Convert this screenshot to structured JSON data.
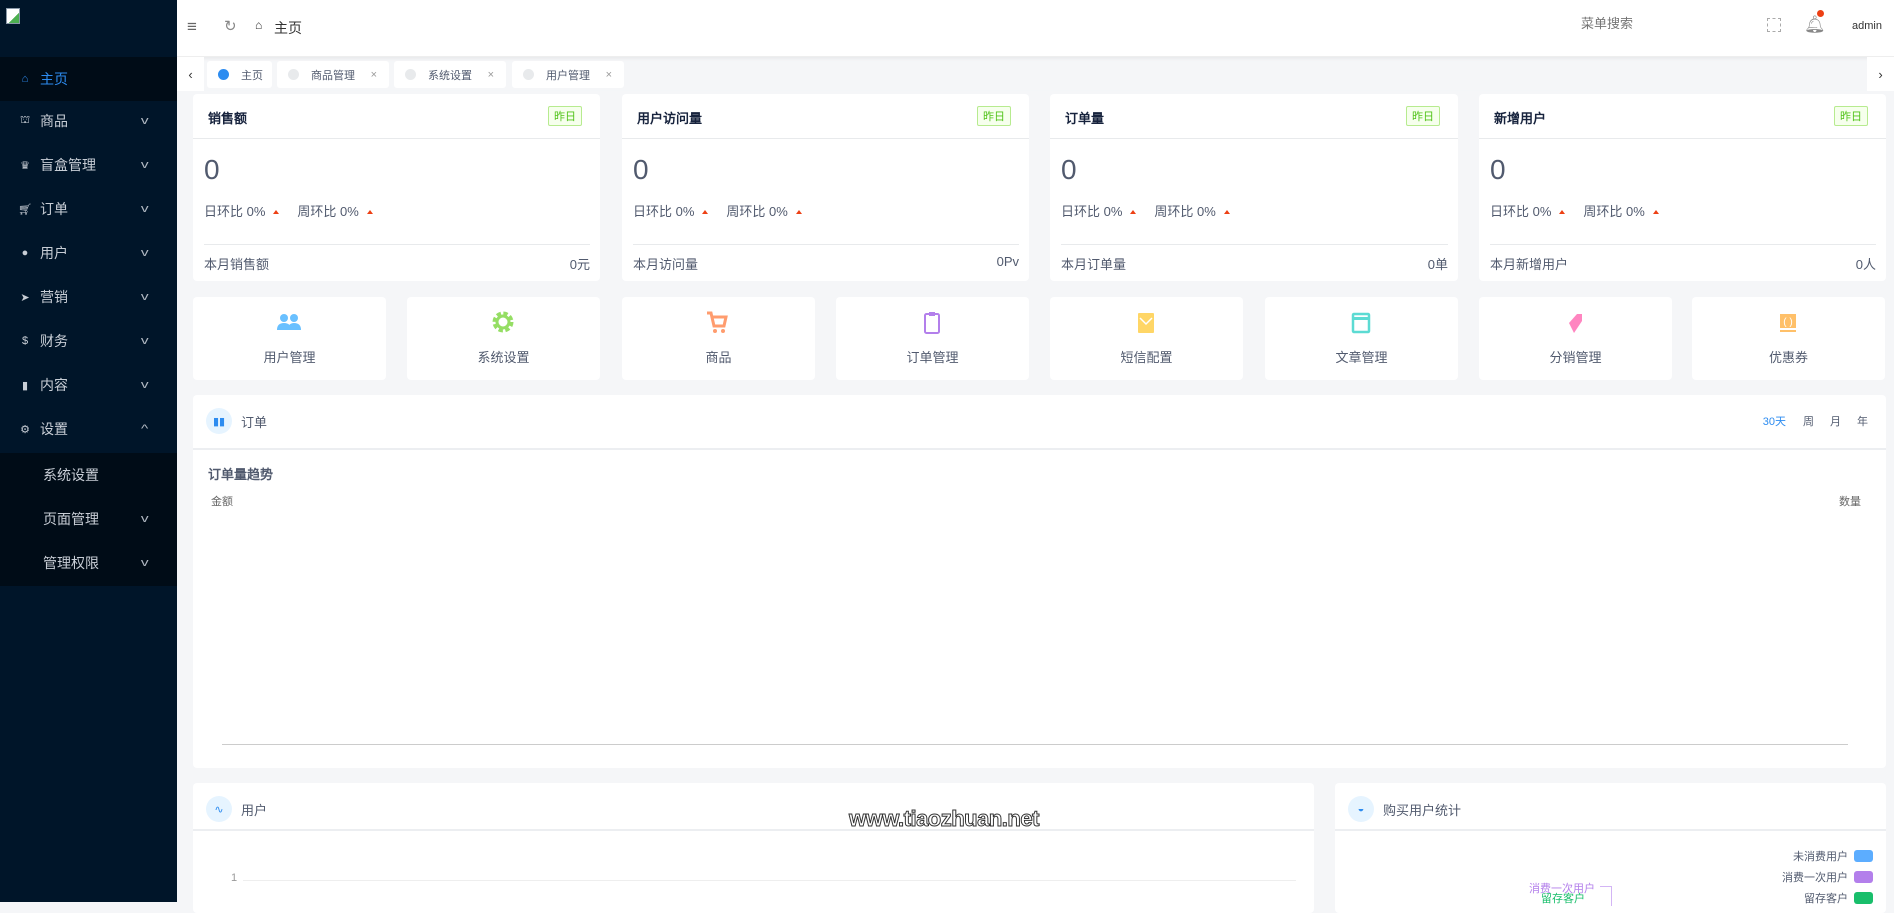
{
  "sidebar": {
    "items": [
      {
        "label": "主页",
        "icon": "home-icon"
      },
      {
        "label": "商品",
        "icon": "basket-icon"
      },
      {
        "label": "盲盒管理",
        "icon": "trophy-icon"
      },
      {
        "label": "订单",
        "icon": "cart-icon"
      },
      {
        "label": "用户",
        "icon": "user-icon"
      },
      {
        "label": "营销",
        "icon": "paper-plane-icon"
      },
      {
        "label": "财务",
        "icon": "dollar-icon"
      },
      {
        "label": "内容",
        "icon": "book-icon"
      },
      {
        "label": "设置",
        "icon": "gear-icon"
      }
    ],
    "submenu": [
      {
        "label": "系统设置"
      },
      {
        "label": "页面管理"
      },
      {
        "label": "管理权限"
      }
    ]
  },
  "header": {
    "breadcrumb": "主页",
    "search_placeholder": "菜单搜索",
    "username": "admin"
  },
  "tabs": [
    {
      "label": "主页",
      "active": true
    },
    {
      "label": "商品管理"
    },
    {
      "label": "系统设置"
    },
    {
      "label": "用户管理"
    }
  ],
  "stats": [
    {
      "title": "销售额",
      "badge": "昨日",
      "value": "0",
      "day": "日环比 0%",
      "week": "周环比 0%",
      "foot_label": "本月销售额",
      "foot_value": "0元"
    },
    {
      "title": "用户访问量",
      "badge": "昨日",
      "value": "0",
      "day": "日环比 0%",
      "week": "周环比 0%",
      "foot_label": "本月访问量",
      "foot_value": "0Pv"
    },
    {
      "title": "订单量",
      "badge": "昨日",
      "value": "0",
      "day": "日环比 0%",
      "week": "周环比 0%",
      "foot_label": "本月订单量",
      "foot_value": "0单"
    },
    {
      "title": "新增用户",
      "badge": "昨日",
      "value": "0",
      "day": "日环比 0%",
      "week": "周环比 0%",
      "foot_label": "本月新增用户",
      "foot_value": "0人"
    }
  ],
  "quick": [
    {
      "label": "用户管理",
      "icon": "users-icon",
      "color": "#69c0ff"
    },
    {
      "label": "系统设置",
      "icon": "gear-icon",
      "color": "#95de64"
    },
    {
      "label": "商品",
      "icon": "cart-icon",
      "color": "#ff9c6e"
    },
    {
      "label": "订单管理",
      "icon": "clipboard-icon",
      "color": "#b37feb"
    },
    {
      "label": "短信配置",
      "icon": "mail-icon",
      "color": "#ffd666"
    },
    {
      "label": "文章管理",
      "icon": "card-icon",
      "color": "#5cdbd3"
    },
    {
      "label": "分销管理",
      "icon": "tag-icon",
      "color": "#ff85c0"
    },
    {
      "label": "优惠券",
      "icon": "coupon-icon",
      "color": "#ffc069"
    }
  ],
  "orders": {
    "title": "订单",
    "periods": [
      "30天",
      "周",
      "月",
      "年"
    ],
    "active_period": "30天",
    "accent": "#2d8cf0",
    "chart_title": "订单量趋势",
    "left_axis": "金额",
    "right_axis": "数量"
  },
  "users": {
    "title": "用户",
    "y_tick": "1"
  },
  "buyers": {
    "title": "购买用户统计",
    "legend": [
      {
        "label": "未消费用户",
        "color": "#5cadff"
      },
      {
        "label": "消费一次用户",
        "color": "#b37feb"
      },
      {
        "label": "留存客户",
        "color": "#19be6b"
      }
    ],
    "labels": [
      "消费一次用户",
      "留存客户"
    ]
  },
  "watermark": "www.tiaozhuan.net"
}
